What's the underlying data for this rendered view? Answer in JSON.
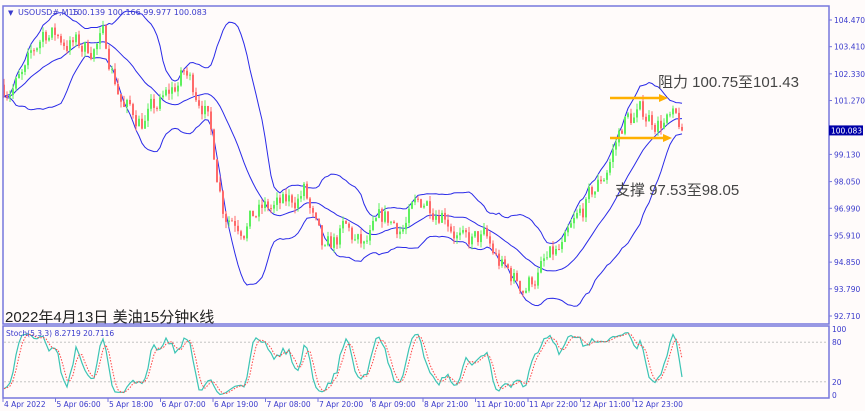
{
  "header": {
    "symbol": "USOUSD#,M15",
    "ohlc": "100.139 100.166 99.977 100.083"
  },
  "caption": "2022年4月13日 美油15分钟K线",
  "annotations": {
    "resistance": "阻力 100.75至101.43",
    "support": "支撑 97.53至98.05",
    "arrow_color": "#ffb000"
  },
  "colors": {
    "background": "#fffbfa",
    "bands": "#2a2ae8",
    "bull": "#5ef05e",
    "bear": "#ff6a6a",
    "axis": "#7777dd",
    "stoch_main": "#3cc4b4",
    "stoch_signal": "#ff4444",
    "current_price_bg": "#0000a8"
  },
  "chart_data": {
    "type": "candlestick",
    "indicators": [
      "Bollinger Bands",
      "Stochastic (5,3,3)"
    ],
    "price_axis": {
      "ticks": [
        "104.470",
        "103.410",
        "102.330",
        "101.270",
        "99.130",
        "98.050",
        "96.990",
        "95.910",
        "94.850",
        "93.790",
        "92.710"
      ],
      "ylim": [
        92.4,
        104.9
      ],
      "current_price": "100.083"
    },
    "time_axis": {
      "ticks": [
        "4 Apr 2022",
        "5 Apr 06:00",
        "5 Apr 18:00",
        "6 Apr 07:00",
        "6 Apr 19:00",
        "7 Apr 08:00",
        "7 Apr 20:00",
        "8 Apr 09:00",
        "8 Apr 21:00",
        "11 Apr 10:00",
        "11 Apr 22:00",
        "12 Apr 11:00",
        "12 Apr 23:00"
      ]
    },
    "approx_close_path": [
      101.9,
      102.1,
      104.1,
      103.7,
      103.3,
      103.7,
      101.0,
      100.5,
      101.2,
      102.3,
      101.3,
      97.0,
      96.5,
      96.9,
      97.0,
      97.7,
      94.9,
      96.1,
      95.3,
      96.5,
      96.3,
      97.3,
      97.1,
      95.5,
      95.7,
      94.5,
      93.9,
      94.7,
      95.3,
      96.9,
      98.3,
      100.5,
      100.7,
      100.5,
      100.08
    ],
    "resistance_range": [
      100.75,
      101.43
    ],
    "support_range": [
      97.53,
      98.05
    ],
    "stochastic": {
      "label": "Stoch(5,3,3) 8.2719 20.7116",
      "main": 8.2719,
      "signal": 20.7116,
      "levels": [
        20,
        80
      ],
      "ticks": [
        "100",
        "80",
        "20",
        "0"
      ],
      "ylim": [
        0,
        100
      ]
    }
  }
}
